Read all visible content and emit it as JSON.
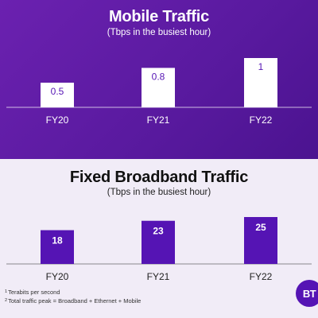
{
  "chart_data": [
    {
      "type": "bar",
      "title": "Mobile Traffic",
      "subtitle": "(Tbps in the busiest hour)",
      "categories": [
        "FY20",
        "FY21",
        "FY22"
      ],
      "values": [
        0.5,
        0.8,
        1
      ],
      "value_labels": [
        "0.5",
        "0.8",
        "1"
      ],
      "ylim": [
        0,
        1
      ],
      "grid": false,
      "bar_color": "#ffffff",
      "label_color": "#5514b4",
      "axis_color": "#ffffff",
      "background": "#5a1aa0"
    },
    {
      "type": "bar",
      "title": "Fixed Broadband Traffic",
      "subtitle": "(Tbps in the busiest hour)",
      "categories": [
        "FY20",
        "FY21",
        "FY22"
      ],
      "values": [
        18,
        23,
        25
      ],
      "value_labels": [
        "18",
        "23",
        "25"
      ],
      "ylim": [
        0,
        25
      ],
      "grid": false,
      "bar_color": "#5514b4",
      "label_color": "#ffffff",
      "axis_color": "#222222",
      "background": "#f1ecf7"
    }
  ],
  "footnotes": [
    {
      "mark": "1",
      "text": "Terabits per second"
    },
    {
      "mark": "2",
      "text": "Total traffic peak = Broadband + Ethernet + Mobile"
    }
  ],
  "logo": {
    "text": "BT",
    "color": "#5514b4"
  }
}
